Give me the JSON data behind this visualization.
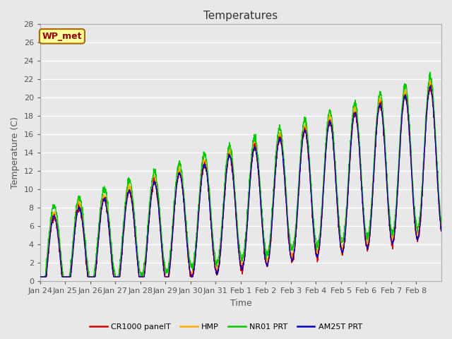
{
  "title": "Temperatures",
  "xlabel": "Time",
  "ylabel": "Temperature (C)",
  "ylim": [
    0,
    28
  ],
  "yticks": [
    0,
    2,
    4,
    6,
    8,
    10,
    12,
    14,
    16,
    18,
    20,
    22,
    24,
    26,
    28
  ],
  "background_color": "#e8e8e8",
  "plot_bg_color": "#e8e8e8",
  "grid_color": "#ffffff",
  "label_color": "#555555",
  "colors": {
    "CR1000": "#dd0000",
    "HMP": "#ffaa00",
    "NR01": "#00cc00",
    "AM25T": "#0000cc"
  },
  "legend_labels": [
    "CR1000 panelT",
    "HMP",
    "NR01 PRT",
    "AM25T PRT"
  ],
  "wp_met_label": "WP_met",
  "wp_met_bg": "#ffff99",
  "wp_met_border": "#aa6600",
  "wp_met_text_color": "#990000",
  "tick_labels": [
    "Jan 24",
    "Jan 25",
    "Jan 26",
    "Jan 27",
    "Jan 28",
    "Jan 29",
    "Jan 30",
    "Jan 31",
    "Feb 1",
    "Feb 2",
    "Feb 3",
    "Feb 4",
    "Feb 5",
    "Feb 6",
    "Feb 7",
    "Feb 8"
  ],
  "title_fontsize": 11,
  "axis_fontsize": 9,
  "tick_fontsize": 8
}
